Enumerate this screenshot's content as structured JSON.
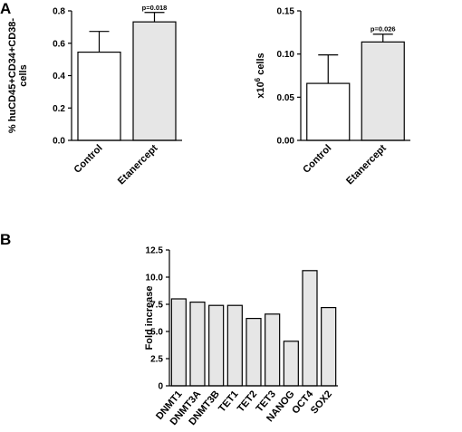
{
  "panel_labels": {
    "a": "A",
    "b": "B"
  },
  "chart_data": [
    {
      "type": "bar",
      "categories": [
        "Control",
        "Etanercept"
      ],
      "values": [
        0.545,
        0.732
      ],
      "errors": [
        0.128,
        0.058
      ],
      "bar_colors": [
        "#ffffff",
        "#e6e6e6"
      ],
      "annotations": [
        "",
        "p=0.018"
      ],
      "ylabel_lines": [
        "% huCD45+CD34+CD38-",
        "cells"
      ],
      "xlabel": "",
      "ylim": [
        0,
        0.8
      ],
      "yticks": [
        0.0,
        0.2,
        0.4,
        0.6,
        0.8
      ],
      "ytick_labels": [
        "0.0",
        "0.2",
        "0.4",
        "0.6",
        "0.8"
      ],
      "grid": false,
      "legend": "none"
    },
    {
      "type": "bar",
      "categories": [
        "Control",
        "Etanercept"
      ],
      "values": [
        0.066,
        0.114
      ],
      "errors": [
        0.033,
        0.009
      ],
      "bar_colors": [
        "#ffffff",
        "#e6e6e6"
      ],
      "annotations": [
        "",
        "p=0.026"
      ],
      "ylabel_lines": [
        "x10^6 cells"
      ],
      "xlabel": "",
      "ylim": [
        0,
        0.15
      ],
      "yticks": [
        0.0,
        0.05,
        0.1,
        0.15
      ],
      "ytick_labels": [
        "0.00",
        "0.05",
        "0.10",
        "0.15"
      ],
      "grid": false,
      "legend": "none"
    },
    {
      "type": "bar",
      "categories": [
        "DNMT1",
        "DNMT3A",
        "DNMT3B",
        "TET1",
        "TET2",
        "TET3",
        "NANOG",
        "OCT4",
        "SOX2"
      ],
      "values": [
        8.0,
        7.7,
        7.4,
        7.4,
        6.2,
        6.6,
        4.1,
        10.6,
        7.2
      ],
      "bar_colors": [
        "#e6e6e6"
      ],
      "ylabel_lines": [
        "Fold increase"
      ],
      "xlabel": "",
      "ylim": [
        0,
        12.5
      ],
      "yticks": [
        0,
        2.5,
        5,
        7.5,
        10,
        12.5
      ],
      "ytick_labels": [
        "0",
        "2.5",
        "5.0",
        "7.5",
        "10.0",
        "12.5"
      ],
      "grid": false,
      "legend": "none"
    }
  ]
}
